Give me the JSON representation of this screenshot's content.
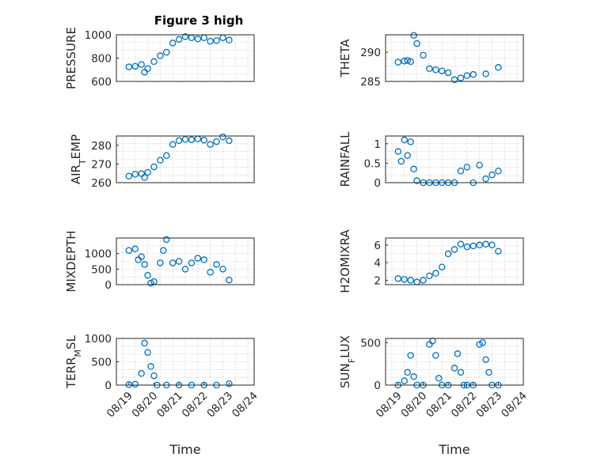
{
  "figure": {
    "title": "Figure 3 high"
  },
  "chart_data": [
    {
      "id": "pressure",
      "type": "scatter",
      "ylabel": "PRESSURE",
      "ylim": [
        600,
        1000
      ],
      "yticks": [
        600,
        800,
        1000
      ],
      "xlabel": "",
      "xticks": [],
      "x": [
        "08/19 00:00",
        "08/19 06:00",
        "08/19 12:00",
        "08/19 15:00",
        "08/19 18:00",
        "08/20 00:00",
        "08/20 06:00",
        "08/20 12:00",
        "08/20 18:00",
        "08/21 00:00",
        "08/21 06:00",
        "08/21 12:00",
        "08/21 18:00",
        "08/22 00:00",
        "08/22 06:00",
        "08/22 12:00",
        "08/22 18:00",
        "08/23 00:00"
      ],
      "y": [
        725,
        730,
        745,
        680,
        710,
        770,
        820,
        850,
        930,
        960,
        985,
        975,
        965,
        975,
        945,
        950,
        975,
        955
      ]
    },
    {
      "id": "theta",
      "type": "scatter",
      "ylabel": "THETA",
      "ylim": [
        285,
        293
      ],
      "yticks": [
        285,
        290
      ],
      "xlabel": "",
      "xticks": [],
      "x": [
        "08/19 00:00",
        "08/19 06:00",
        "08/19 09:00",
        "08/19 12:00",
        "08/19 15:00",
        "08/19 18:00",
        "08/20 00:00",
        "08/20 06:00",
        "08/20 12:00",
        "08/20 18:00",
        "08/21 00:00",
        "08/21 06:00",
        "08/21 12:00",
        "08/21 18:00",
        "08/22 00:00",
        "08/22 12:00",
        "08/23 00:00"
      ],
      "y": [
        288.3,
        288.5,
        288.6,
        288.4,
        292.9,
        291.5,
        289.5,
        287.2,
        287.0,
        286.8,
        286.5,
        285.3,
        285.6,
        286.0,
        286.2,
        286.3,
        287.4
      ]
    },
    {
      "id": "air_temp",
      "type": "scatter",
      "ylabel": "AIR_TEMP",
      "ylim": [
        260,
        285
      ],
      "yticks": [
        260,
        270,
        280
      ],
      "xlabel": "",
      "xticks": [],
      "x": [
        "08/19 00:00",
        "08/19 06:00",
        "08/19 12:00",
        "08/19 15:00",
        "08/19 18:00",
        "08/20 00:00",
        "08/20 06:00",
        "08/20 12:00",
        "08/20 18:00",
        "08/21 00:00",
        "08/21 06:00",
        "08/21 12:00",
        "08/21 18:00",
        "08/22 00:00",
        "08/22 06:00",
        "08/22 12:00",
        "08/22 18:00",
        "08/23 00:00"
      ],
      "y": [
        263.5,
        264.5,
        264.8,
        262.8,
        265.5,
        268.5,
        272,
        274.5,
        280.5,
        282.5,
        283.2,
        283.0,
        283.5,
        282.8,
        280.5,
        282.0,
        284.5,
        282.5
      ]
    },
    {
      "id": "rainfall",
      "type": "scatter",
      "ylabel": "RAINFALL",
      "ylim": [
        0,
        1.2
      ],
      "yticks": [
        0,
        0.5,
        1
      ],
      "xlabel": "",
      "xticks": [],
      "x": [
        "08/19 00:00",
        "08/19 03:00",
        "08/19 06:00",
        "08/19 09:00",
        "08/19 12:00",
        "08/19 15:00",
        "08/19 18:00",
        "08/20 00:00",
        "08/20 06:00",
        "08/20 12:00",
        "08/20 18:00",
        "08/21 00:00",
        "08/21 06:00",
        "08/21 12:00",
        "08/21 18:00",
        "08/22 00:00",
        "08/22 06:00",
        "08/22 12:00",
        "08/22 18:00",
        "08/23 00:00"
      ],
      "y": [
        0.8,
        0.55,
        1.1,
        0.7,
        1.05,
        0.35,
        0.05,
        0,
        0,
        0,
        0,
        0,
        0,
        0.3,
        0.4,
        0,
        0.45,
        0.1,
        0.2,
        0.3
      ]
    },
    {
      "id": "mixdepth",
      "type": "scatter",
      "ylabel": "MIXDEPTH",
      "ylim": [
        0,
        1500
      ],
      "yticks": [
        0,
        500,
        1000
      ],
      "xlabel": "",
      "xticks": [],
      "x": [
        "08/19 00:00",
        "08/19 06:00",
        "08/19 09:00",
        "08/19 12:00",
        "08/19 15:00",
        "08/19 18:00",
        "08/19 21:00",
        "08/20 00:00",
        "08/20 06:00",
        "08/20 09:00",
        "08/20 12:00",
        "08/20 18:00",
        "08/21 00:00",
        "08/21 06:00",
        "08/21 12:00",
        "08/21 18:00",
        "08/22 00:00",
        "08/22 06:00",
        "08/22 12:00",
        "08/22 18:00",
        "08/23 00:00"
      ],
      "y": [
        1100,
        1150,
        800,
        900,
        650,
        300,
        50,
        100,
        700,
        1100,
        1450,
        700,
        750,
        500,
        700,
        850,
        800,
        400,
        650,
        500,
        150
      ]
    },
    {
      "id": "h2omixra",
      "type": "scatter",
      "ylabel": "H2OMIXRA",
      "ylim": [
        1.5,
        6.8
      ],
      "yticks": [
        2,
        4,
        6
      ],
      "xlabel": "",
      "xticks": [],
      "x": [
        "08/19 00:00",
        "08/19 06:00",
        "08/19 12:00",
        "08/19 18:00",
        "08/20 00:00",
        "08/20 06:00",
        "08/20 12:00",
        "08/20 18:00",
        "08/21 00:00",
        "08/21 06:00",
        "08/21 12:00",
        "08/21 18:00",
        "08/22 00:00",
        "08/22 06:00",
        "08/22 12:00",
        "08/22 18:00",
        "08/23 00:00"
      ],
      "y": [
        2.2,
        2.1,
        2.0,
        1.8,
        2.0,
        2.5,
        2.8,
        3.5,
        5.0,
        5.5,
        6.1,
        5.8,
        5.9,
        6.0,
        6.1,
        6.0,
        5.3
      ]
    },
    {
      "id": "terr_msl",
      "type": "scatter",
      "ylabel": "TERR_MSL",
      "ylim": [
        0,
        1000
      ],
      "yticks": [
        0,
        500,
        1000
      ],
      "xlabel": "Time",
      "xticks": [
        "08/19",
        "08/20",
        "08/21",
        "08/22",
        "08/23",
        "08/24"
      ],
      "x": [
        "08/19 00:00",
        "08/19 06:00",
        "08/19 12:00",
        "08/19 15:00",
        "08/19 18:00",
        "08/19 21:00",
        "08/20 00:00",
        "08/20 03:00",
        "08/20 12:00",
        "08/21 00:00",
        "08/21 12:00",
        "08/22 00:00",
        "08/22 12:00",
        "08/23 00:00"
      ],
      "y": [
        10,
        20,
        250,
        900,
        700,
        400,
        200,
        0,
        0,
        0,
        0,
        0,
        0,
        30
      ]
    },
    {
      "id": "sun_flux",
      "type": "scatter",
      "ylabel": "SUN_FLUX",
      "ylim": [
        0,
        550
      ],
      "yticks": [
        0,
        500
      ],
      "xlabel": "Time",
      "xticks": [
        "08/19",
        "08/20",
        "08/21",
        "08/22",
        "08/23",
        "08/24"
      ],
      "x": [
        "08/19 00:00",
        "08/19 06:00",
        "08/19 09:00",
        "08/19 12:00",
        "08/19 15:00",
        "08/19 18:00",
        "08/20 00:00",
        "08/20 06:00",
        "08/20 09:00",
        "08/20 12:00",
        "08/20 15:00",
        "08/20 18:00",
        "08/21 00:00",
        "08/21 06:00",
        "08/21 09:00",
        "08/21 12:00",
        "08/21 15:00",
        "08/21 18:00",
        "08/22 00:00",
        "08/22 06:00",
        "08/22 09:00",
        "08/22 12:00",
        "08/22 15:00",
        "08/22 18:00",
        "08/23 00:00"
      ],
      "y": [
        0,
        50,
        150,
        350,
        100,
        0,
        0,
        480,
        520,
        350,
        80,
        0,
        0,
        200,
        370,
        150,
        0,
        0,
        0,
        480,
        500,
        300,
        150,
        0,
        0
      ]
    }
  ],
  "colors": {
    "marker": "#0072bd",
    "axis": "#262626",
    "grid": "#b0b0b0"
  }
}
